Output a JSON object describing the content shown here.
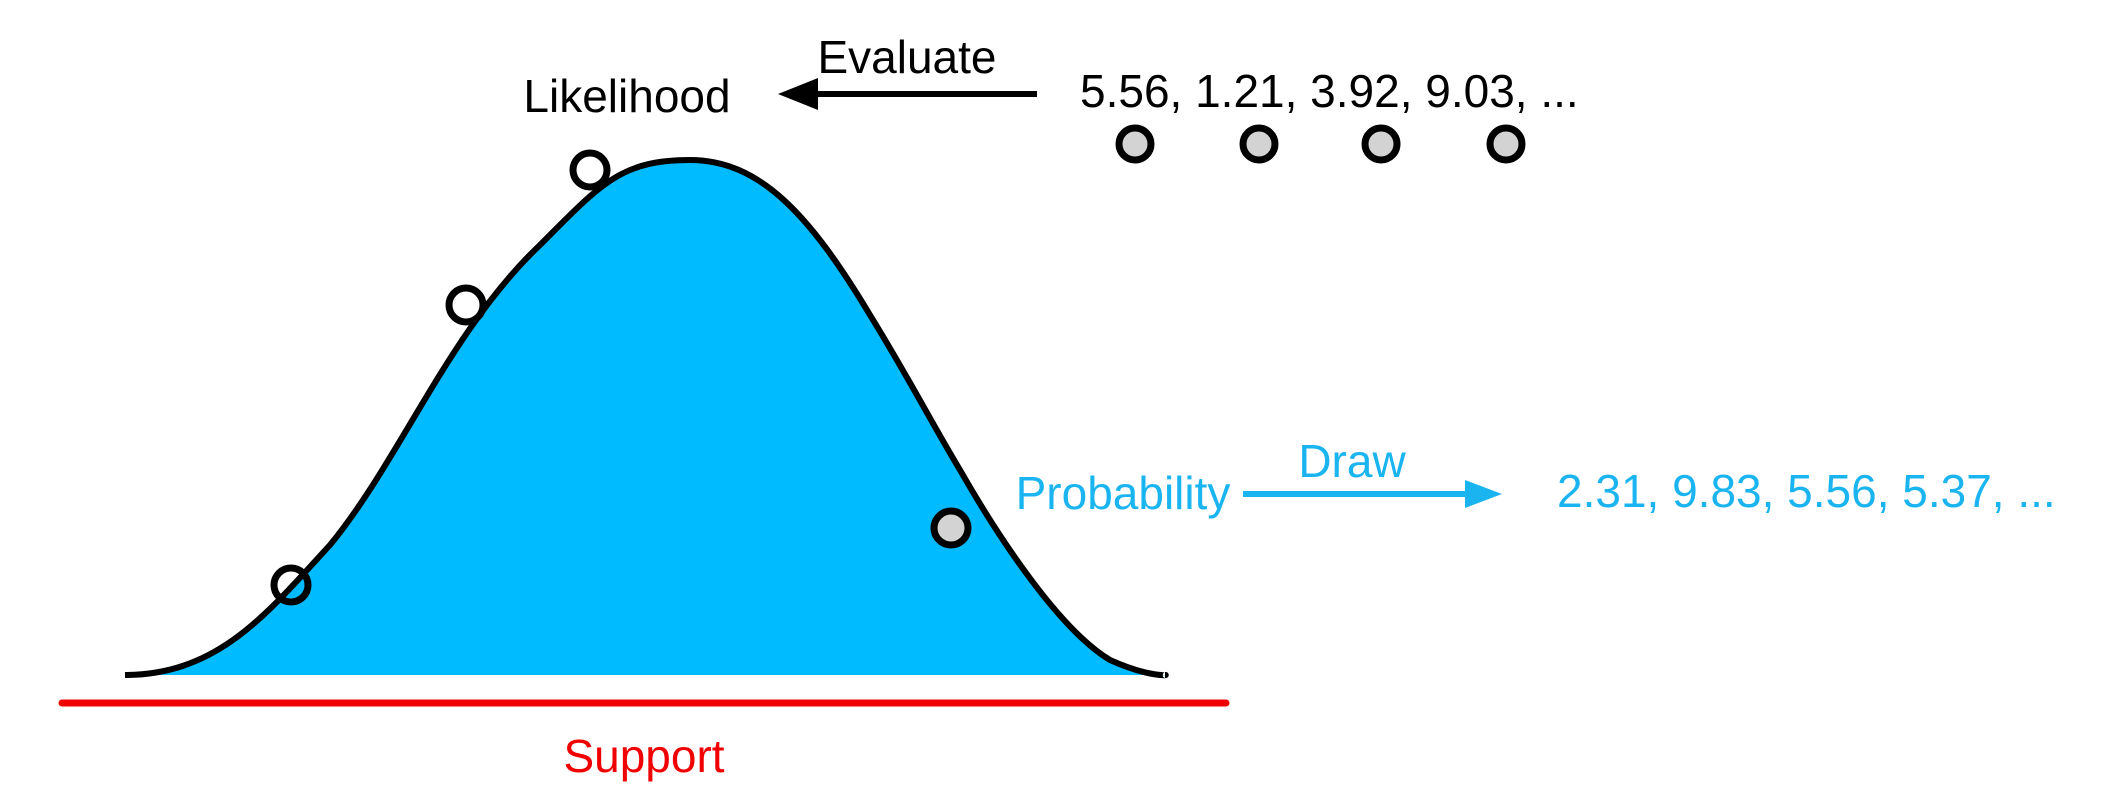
{
  "labels": {
    "likelihood": "Likelihood",
    "evaluate": "Evaluate",
    "evaluated_values": "5.56, 1.21, 3.92, 9.03, ...",
    "probability": "Probability",
    "draw": "Draw",
    "drawn_values": "2.31, 9.83, 5.56, 5.37, ...",
    "support": "Support"
  },
  "colors": {
    "fill": "#00bbff",
    "stroke": "#000000",
    "accent_blue": "#1ab4f0",
    "support_red": "#f00000",
    "marker_fill": "#d3d3d3"
  }
}
